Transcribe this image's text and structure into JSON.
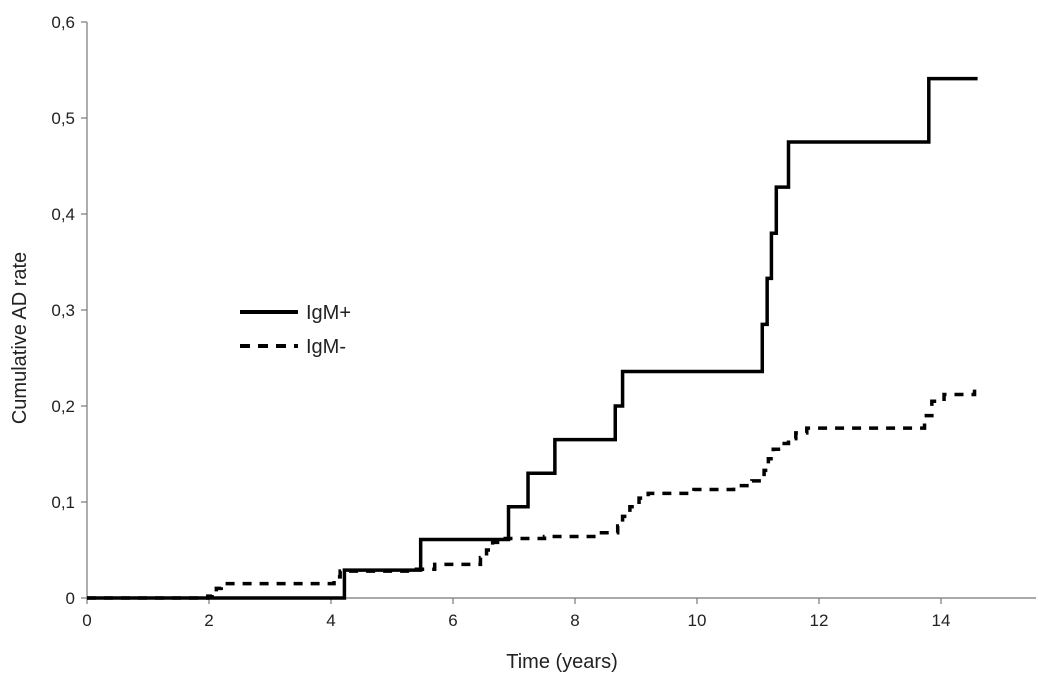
{
  "chart_data": {
    "type": "line",
    "title": "",
    "xlabel": "Time (years)",
    "ylabel": "Cumulative AD rate",
    "xlim": [
      0,
      14.7
    ],
    "ylim": [
      0,
      0.6
    ],
    "x_ticks": [
      "0",
      "2",
      "4",
      "6",
      "8",
      "10",
      "12",
      "14"
    ],
    "y_ticks": [
      "0",
      "0,1",
      "0,2",
      "0,3",
      "0,4",
      "0,5",
      "0,6"
    ],
    "x_tick_values": [
      0,
      2,
      4,
      6,
      8,
      10,
      12,
      14
    ],
    "y_tick_values": [
      0,
      0.1,
      0.2,
      0.3,
      0.4,
      0.5,
      0.6
    ],
    "grid": false,
    "legend_position": "left-middle",
    "series": [
      {
        "name": "IgM+",
        "style": "solid",
        "color": "#000000",
        "step": true,
        "points": [
          [
            0,
            0
          ],
          [
            4.22,
            0.029
          ],
          [
            5.47,
            0.061
          ],
          [
            6.91,
            0.095
          ],
          [
            7.23,
            0.13
          ],
          [
            7.67,
            0.165
          ],
          [
            8.66,
            0.2
          ],
          [
            8.78,
            0.236
          ],
          [
            11.07,
            0.285
          ],
          [
            11.15,
            0.333
          ],
          [
            11.22,
            0.38
          ],
          [
            11.3,
            0.428
          ],
          [
            11.5,
            0.475
          ],
          [
            13.8,
            0.541
          ],
          [
            14.6,
            0.541
          ]
        ]
      },
      {
        "name": "IgM-",
        "style": "dashed",
        "color": "#000000",
        "step": true,
        "points": [
          [
            0,
            0
          ],
          [
            1.98,
            0.002
          ],
          [
            2.05,
            0.005
          ],
          [
            2.12,
            0.01
          ],
          [
            2.2,
            0.015
          ],
          [
            4.05,
            0.022
          ],
          [
            4.15,
            0.028
          ],
          [
            5.4,
            0.03
          ],
          [
            5.7,
            0.035
          ],
          [
            6.45,
            0.042
          ],
          [
            6.55,
            0.05
          ],
          [
            6.65,
            0.058
          ],
          [
            6.8,
            0.062
          ],
          [
            7.5,
            0.064
          ],
          [
            8.35,
            0.068
          ],
          [
            8.7,
            0.075
          ],
          [
            8.78,
            0.085
          ],
          [
            8.9,
            0.095
          ],
          [
            9.05,
            0.104
          ],
          [
            9.2,
            0.109
          ],
          [
            9.95,
            0.113
          ],
          [
            10.6,
            0.117
          ],
          [
            10.9,
            0.122
          ],
          [
            11.1,
            0.133
          ],
          [
            11.17,
            0.145
          ],
          [
            11.25,
            0.155
          ],
          [
            11.38,
            0.161
          ],
          [
            11.5,
            0.166
          ],
          [
            11.62,
            0.172
          ],
          [
            11.8,
            0.177
          ],
          [
            13.73,
            0.19
          ],
          [
            13.85,
            0.205
          ],
          [
            14.05,
            0.212
          ],
          [
            14.55,
            0.217
          ]
        ]
      }
    ]
  }
}
